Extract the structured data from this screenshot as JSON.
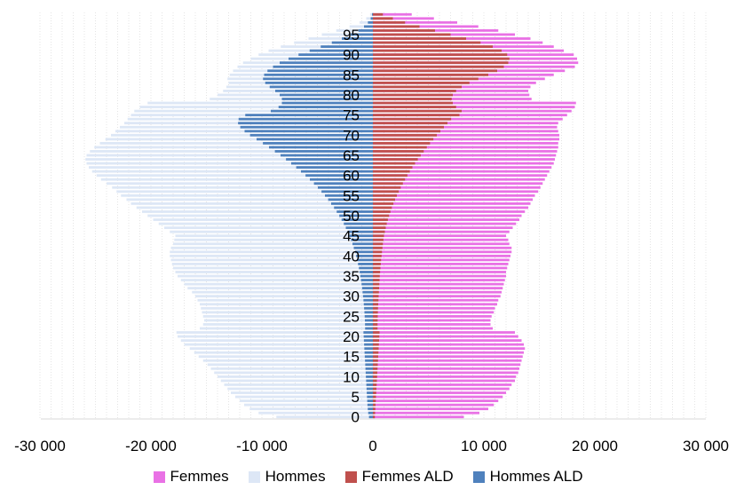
{
  "chart_data": {
    "type": "bar",
    "orientation": "horizontal",
    "layout": "population-pyramid",
    "age_range": [
      0,
      100
    ],
    "y_tick_labels": [
      "0",
      "5",
      "10",
      "15",
      "20",
      "25",
      "30",
      "35",
      "40",
      "45",
      "50",
      "55",
      "60",
      "65",
      "70",
      "75",
      "80",
      "85",
      "90",
      "95"
    ],
    "x_tick_labels": [
      "-30 000",
      "-20 000",
      "-10 000",
      "0",
      "10 000",
      "20 000",
      "30 000"
    ],
    "xlim": [
      -30000,
      30000
    ],
    "grid": "vertical dotted lines every 1000",
    "legend_position": "bottom",
    "series": [
      {
        "name": "Femmes",
        "color": "#e971e5",
        "side": "right",
        "values": [
          8200,
          9600,
          10400,
          10900,
          11300,
          11700,
          12000,
          12300,
          12500,
          12800,
          12900,
          13100,
          13200,
          13300,
          13400,
          13500,
          13600,
          13700,
          13600,
          13400,
          13100,
          12800,
          10800,
          10600,
          10600,
          10700,
          10900,
          11000,
          11200,
          11300,
          11500,
          11600,
          11700,
          11800,
          11900,
          12000,
          12000,
          12100,
          12200,
          12300,
          12400,
          12500,
          12500,
          12300,
          12200,
          12000,
          12300,
          12600,
          12900,
          13200,
          13400,
          13700,
          14000,
          14200,
          14400,
          14600,
          14900,
          15100,
          15300,
          15500,
          15700,
          15900,
          16100,
          16300,
          16400,
          16500,
          16600,
          16700,
          16700,
          16800,
          16800,
          16700,
          16600,
          16700,
          17100,
          17500,
          17900,
          18200,
          18300,
          14300,
          14100,
          14000,
          14200,
          14700,
          15500,
          16300,
          17300,
          18200,
          18500,
          18400,
          18100,
          17200,
          16300,
          15300,
          14200,
          12800,
          11300,
          9500,
          7600,
          5500,
          3500
        ]
      },
      {
        "name": "Hommes",
        "color": "#dde7f6",
        "side": "left",
        "values": [
          8700,
          10300,
          11100,
          11600,
          12000,
          12400,
          12800,
          13100,
          13400,
          13700,
          14000,
          14300,
          14600,
          14900,
          15300,
          15700,
          16100,
          16500,
          17000,
          17300,
          17600,
          17700,
          15600,
          15300,
          15200,
          15300,
          15400,
          15500,
          15600,
          15800,
          16000,
          16300,
          16700,
          17000,
          17300,
          17600,
          17800,
          18000,
          18100,
          18200,
          18300,
          18300,
          18200,
          18000,
          17900,
          17800,
          18300,
          18800,
          19300,
          19800,
          20300,
          20800,
          21300,
          21800,
          22200,
          22700,
          23100,
          23500,
          24000,
          24500,
          24900,
          25300,
          25600,
          25800,
          25900,
          25800,
          25500,
          25100,
          24600,
          24100,
          23600,
          23200,
          22800,
          22400,
          22100,
          21800,
          21500,
          21000,
          20300,
          14700,
          14000,
          13500,
          13200,
          13000,
          13100,
          12900,
          12600,
          12200,
          11700,
          11000,
          10300,
          9400,
          8300,
          7100,
          5800,
          4600,
          3300,
          2100,
          1200,
          600,
          250
        ]
      },
      {
        "name": "Femmes ALD",
        "color": "#c0504d",
        "side": "right",
        "values": [
          180,
          200,
          220,
          240,
          260,
          280,
          300,
          320,
          340,
          360,
          380,
          400,
          420,
          440,
          460,
          480,
          500,
          520,
          540,
          560,
          580,
          600,
          420,
          420,
          430,
          440,
          450,
          460,
          480,
          500,
          520,
          540,
          560,
          580,
          600,
          620,
          650,
          680,
          710,
          740,
          780,
          820,
          860,
          900,
          950,
          1000,
          1080,
          1160,
          1250,
          1350,
          1460,
          1580,
          1710,
          1850,
          2000,
          2160,
          2330,
          2510,
          2700,
          2900,
          3110,
          3330,
          3560,
          3800,
          4050,
          4310,
          4580,
          4860,
          5150,
          5450,
          5760,
          6080,
          6400,
          6720,
          7050,
          7800,
          8000,
          7500,
          7200,
          7100,
          7200,
          7500,
          8000,
          8700,
          9500,
          10400,
          11200,
          11800,
          12200,
          12300,
          12100,
          11600,
          10800,
          9700,
          8400,
          7000,
          5600,
          4200,
          2900,
          1800,
          900
        ]
      },
      {
        "name": "Hommes ALD",
        "color": "#4f81bd",
        "side": "left",
        "values": [
          350,
          420,
          460,
          490,
          510,
          530,
          550,
          570,
          590,
          610,
          630,
          650,
          670,
          690,
          710,
          730,
          750,
          770,
          790,
          810,
          830,
          850,
          700,
          710,
          720,
          740,
          760,
          790,
          820,
          850,
          890,
          930,
          970,
          1020,
          1070,
          1130,
          1190,
          1260,
          1340,
          1420,
          1510,
          1610,
          1720,
          1840,
          1970,
          2110,
          2270,
          2440,
          2620,
          2820,
          3030,
          3260,
          3500,
          3760,
          4030,
          4320,
          4630,
          4960,
          5310,
          5680,
          6070,
          6480,
          6910,
          7360,
          7830,
          8320,
          8830,
          9360,
          9910,
          10480,
          11070,
          11560,
          11950,
          12150,
          12100,
          11500,
          9200,
          8500,
          8200,
          8200,
          8400,
          8800,
          9300,
          9700,
          9900,
          9800,
          9500,
          9000,
          8400,
          7600,
          6700,
          5700,
          4700,
          3700,
          2800,
          2000,
          1300,
          800,
          450,
          200,
          80
        ]
      }
    ]
  },
  "legend": {
    "femmes": "Femmes",
    "hommes": "Hommes",
    "femmes_ald": "Femmes ALD",
    "hommes_ald": "Hommes ALD"
  }
}
